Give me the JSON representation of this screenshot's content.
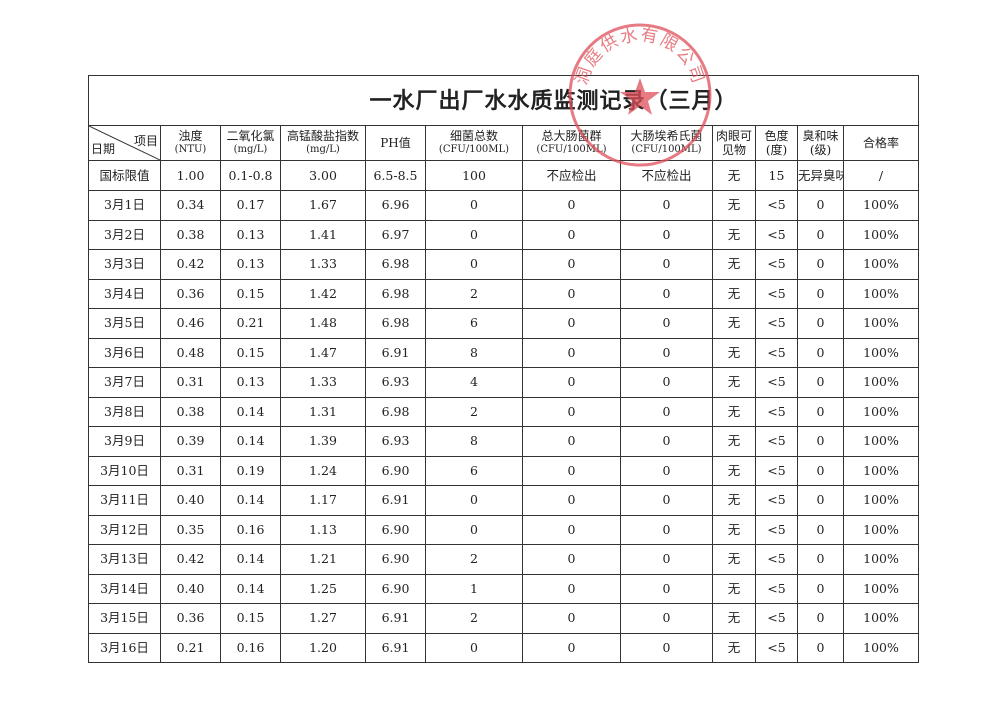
{
  "title": "一水厂出厂水水质监测记录（三月）",
  "header": [
    [
      "项目",
      "日期"
    ],
    [
      "浊度",
      "(NTU)"
    ],
    [
      "二氧化氯",
      "(mg/L)"
    ],
    [
      "高锰酸盐指数",
      "(mg/L)"
    ],
    [
      "PH值"
    ],
    [
      "细菌总数",
      "(CFU/100ML)"
    ],
    [
      "总大肠菌群",
      "(CFU/100ML)"
    ],
    [
      "大肠埃希氏菌",
      "(CFU/100ML)"
    ],
    [
      "肉眼可",
      "见物"
    ],
    [
      "色度",
      "(度)"
    ],
    [
      "臭和味",
      "(级)"
    ],
    [
      "合格率"
    ]
  ],
  "limits": [
    "国标限值",
    "1.00",
    "0.1-0.8",
    "3.00",
    "6.5-8.5",
    "100",
    "不应检出",
    "不应检出",
    "无",
    "15",
    "无异臭味",
    "/"
  ],
  "rows": [
    [
      "3月1日",
      "0.34",
      "0.17",
      "1.67",
      "6.96",
      "0",
      "0",
      "0",
      "无",
      "<5",
      "0",
      "100%"
    ],
    [
      "3月2日",
      "0.38",
      "0.13",
      "1.41",
      "6.97",
      "0",
      "0",
      "0",
      "无",
      "<5",
      "0",
      "100%"
    ],
    [
      "3月3日",
      "0.42",
      "0.13",
      "1.33",
      "6.98",
      "0",
      "0",
      "0",
      "无",
      "<5",
      "0",
      "100%"
    ],
    [
      "3月4日",
      "0.36",
      "0.15",
      "1.42",
      "6.98",
      "2",
      "0",
      "0",
      "无",
      "<5",
      "0",
      "100%"
    ],
    [
      "3月5日",
      "0.46",
      "0.21",
      "1.48",
      "6.98",
      "6",
      "0",
      "0",
      "无",
      "<5",
      "0",
      "100%"
    ],
    [
      "3月6日",
      "0.48",
      "0.15",
      "1.47",
      "6.91",
      "8",
      "0",
      "0",
      "无",
      "<5",
      "0",
      "100%"
    ],
    [
      "3月7日",
      "0.31",
      "0.13",
      "1.33",
      "6.93",
      "4",
      "0",
      "0",
      "无",
      "<5",
      "0",
      "100%"
    ],
    [
      "3月8日",
      "0.38",
      "0.14",
      "1.31",
      "6.98",
      "2",
      "0",
      "0",
      "无",
      "<5",
      "0",
      "100%"
    ],
    [
      "3月9日",
      "0.39",
      "0.14",
      "1.39",
      "6.93",
      "8",
      "0",
      "0",
      "无",
      "<5",
      "0",
      "100%"
    ],
    [
      "3月10日",
      "0.31",
      "0.19",
      "1.24",
      "6.90",
      "6",
      "0",
      "0",
      "无",
      "<5",
      "0",
      "100%"
    ],
    [
      "3月11日",
      "0.40",
      "0.14",
      "1.17",
      "6.91",
      "0",
      "0",
      "0",
      "无",
      "<5",
      "0",
      "100%"
    ],
    [
      "3月12日",
      "0.35",
      "0.16",
      "1.13",
      "6.90",
      "0",
      "0",
      "0",
      "无",
      "<5",
      "0",
      "100%"
    ],
    [
      "3月13日",
      "0.42",
      "0.14",
      "1.21",
      "6.90",
      "2",
      "0",
      "0",
      "无",
      "<5",
      "0",
      "100%"
    ],
    [
      "3月14日",
      "0.40",
      "0.14",
      "1.25",
      "6.90",
      "1",
      "0",
      "0",
      "无",
      "<5",
      "0",
      "100%"
    ],
    [
      "3月15日",
      "0.36",
      "0.15",
      "1.27",
      "6.91",
      "2",
      "0",
      "0",
      "无",
      "<5",
      "0",
      "100%"
    ],
    [
      "3月16日",
      "0.21",
      "0.16",
      "1.20",
      "6.91",
      "0",
      "0",
      "0",
      "无",
      "<5",
      "0",
      "100%"
    ]
  ],
  "stamp": "洞庭供水有限公司"
}
